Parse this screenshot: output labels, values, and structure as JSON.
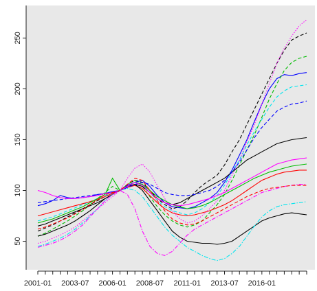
{
  "chart_data": {
    "type": "line",
    "categories": [
      "2001-01",
      null,
      null,
      null,
      null,
      "2003-07",
      null,
      null,
      null,
      null,
      "2006-01",
      null,
      null,
      null,
      null,
      "2008-07",
      null,
      null,
      null,
      null,
      "2011-01",
      null,
      null,
      null,
      null,
      "2013-07",
      null,
      null,
      null,
      null,
      "2016-01",
      null,
      null,
      null,
      null,
      null,
      null
    ],
    "ylim": [
      22,
      282
    ],
    "yticks": [
      50,
      100,
      150,
      200,
      250
    ],
    "background": "#e8e8e8",
    "series": [
      {
        "color": "#0000ff",
        "linestyle": "solid",
        "values": [
          85,
          87,
          90,
          95,
          93,
          92,
          93,
          94,
          96,
          97,
          99,
          100,
          105,
          108,
          110,
          104,
          95,
          88,
          84,
          83,
          82,
          84,
          88,
          92,
          98,
          108,
          120,
          135,
          150,
          168,
          185,
          200,
          210,
          214,
          213,
          215,
          216
        ]
      },
      {
        "color": "#000000",
        "linestyle": "dashed",
        "values": [
          60,
          63,
          66,
          70,
          74,
          78,
          82,
          86,
          90,
          94,
          97,
          100,
          106,
          110,
          108,
          100,
          92,
          86,
          82,
          84,
          90,
          98,
          105,
          110,
          115,
          125,
          138,
          150,
          165,
          180,
          195,
          210,
          225,
          238,
          248,
          252,
          255
        ]
      },
      {
        "color": "#ff00ff",
        "linestyle": "dotted",
        "values": [
          48,
          50,
          53,
          56,
          60,
          64,
          70,
          76,
          82,
          88,
          94,
          100,
          112,
          122,
          126,
          118,
          105,
          92,
          80,
          72,
          68,
          70,
          75,
          82,
          90,
          100,
          115,
          130,
          148,
          165,
          185,
          205,
          225,
          240,
          252,
          262,
          268
        ]
      },
      {
        "color": "#00bb00",
        "linestyle": "dashed",
        "values": [
          55,
          58,
          62,
          66,
          70,
          75,
          80,
          86,
          92,
          98,
          104,
          100,
          106,
          110,
          104,
          94,
          84,
          76,
          70,
          66,
          64,
          66,
          70,
          78,
          86,
          96,
          110,
          125,
          140,
          155,
          172,
          190,
          205,
          218,
          226,
          230,
          232
        ]
      },
      {
        "color": "#00e5ee",
        "linestyle": "dashed",
        "values": [
          70,
          72,
          74,
          77,
          80,
          83,
          86,
          89,
          92,
          95,
          98,
          100,
          104,
          108,
          106,
          98,
          90,
          84,
          80,
          78,
          76,
          78,
          82,
          88,
          95,
          105,
          118,
          130,
          145,
          158,
          170,
          182,
          192,
          198,
          202,
          203,
          204
        ]
      },
      {
        "color": "#000000",
        "linestyle": "solid",
        "values": [
          65,
          67,
          70,
          73,
          76,
          79,
          82,
          85,
          88,
          92,
          96,
          100,
          104,
          106,
          104,
          98,
          92,
          88,
          86,
          88,
          92,
          96,
          100,
          104,
          108,
          112,
          118,
          124,
          130,
          134,
          138,
          142,
          146,
          148,
          150,
          151,
          152
        ]
      },
      {
        "color": "#ff0000",
        "linestyle": "solid",
        "values": [
          75,
          77,
          79,
          81,
          83,
          85,
          87,
          89,
          91,
          94,
          97,
          100,
          103,
          105,
          102,
          95,
          88,
          82,
          78,
          76,
          75,
          76,
          78,
          80,
          83,
          86,
          90,
          95,
          100,
          105,
          110,
          113,
          116,
          118,
          119,
          120,
          120
        ]
      },
      {
        "color": "#000000",
        "linestyle": "solid",
        "values": [
          55,
          57,
          60,
          63,
          66,
          70,
          75,
          80,
          86,
          92,
          96,
          100,
          104,
          106,
          100,
          90,
          80,
          70,
          60,
          54,
          50,
          49,
          48,
          48,
          47,
          48,
          50,
          55,
          60,
          65,
          70,
          73,
          75,
          77,
          78,
          77,
          76
        ]
      },
      {
        "color": "#00e5ee",
        "linestyle": "dashdot",
        "values": [
          45,
          47,
          50,
          53,
          57,
          62,
          68,
          75,
          82,
          90,
          96,
          100,
          102,
          100,
          94,
          84,
          74,
          64,
          56,
          50,
          44,
          40,
          36,
          33,
          31,
          33,
          38,
          45,
          55,
          65,
          74,
          80,
          84,
          86,
          87,
          88,
          89
        ]
      },
      {
        "color": "#ff00ff",
        "linestyle": "dashdot",
        "values": [
          44,
          46,
          48,
          51,
          55,
          60,
          66,
          74,
          82,
          90,
          96,
          100,
          96,
          82,
          60,
          45,
          38,
          36,
          40,
          48,
          56,
          62,
          66,
          70,
          74,
          78,
          82,
          86,
          90,
          94,
          98,
          100,
          102,
          104,
          105,
          106,
          106
        ]
      },
      {
        "color": "#00bb00",
        "linestyle": "solid",
        "values": [
          68,
          70,
          72,
          75,
          78,
          81,
          84,
          88,
          92,
          96,
          112,
          100,
          104,
          108,
          106,
          100,
          94,
          90,
          86,
          84,
          82,
          83,
          85,
          88,
          92,
          96,
          100,
          104,
          108,
          112,
          115,
          118,
          120,
          122,
          124,
          125,
          126
        ]
      },
      {
        "color": "#0000ff",
        "linestyle": "dashed",
        "values": [
          88,
          89,
          90,
          91,
          92,
          93,
          94,
          95,
          96,
          97,
          98,
          100,
          103,
          106,
          108,
          106,
          102,
          98,
          96,
          95,
          95,
          96,
          98,
          100,
          104,
          110,
          118,
          128,
          140,
          152,
          162,
          170,
          178,
          182,
          185,
          186,
          188
        ]
      },
      {
        "color": "#ff00ff",
        "linestyle": "solid",
        "values": [
          100,
          98,
          95,
          93,
          92,
          92,
          93,
          94,
          95,
          97,
          98,
          100,
          104,
          108,
          105,
          98,
          92,
          88,
          86,
          85,
          86,
          88,
          90,
          92,
          95,
          98,
          102,
          106,
          110,
          114,
          118,
          122,
          126,
          128,
          130,
          131,
          132
        ]
      },
      {
        "color": "#ff0000",
        "linestyle": "dashed",
        "values": [
          62,
          64,
          67,
          70,
          73,
          77,
          81,
          86,
          91,
          96,
          98,
          100,
          106,
          112,
          110,
          100,
          90,
          80,
          72,
          68,
          66,
          67,
          70,
          74,
          78,
          82,
          86,
          90,
          94,
          97,
          100,
          102,
          103,
          104,
          105,
          105,
          105
        ]
      }
    ]
  }
}
